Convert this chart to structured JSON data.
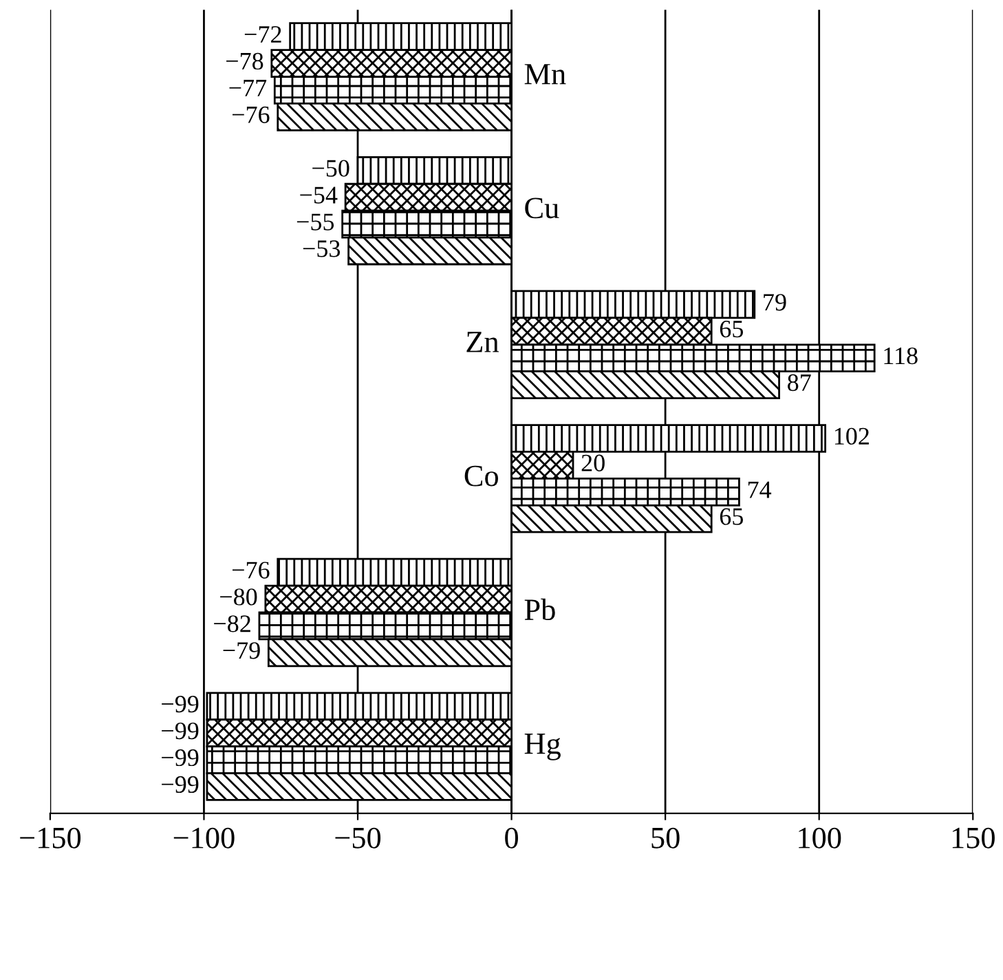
{
  "chart_data": {
    "type": "bar",
    "orientation": "horizontal",
    "categories": [
      "Mn",
      "Cu",
      "Zn",
      "Co",
      "Pb",
      "Hg"
    ],
    "series": [
      {
        "color": "#000000",
        "values": [
          -72,
          -50,
          79,
          102,
          -76,
          -99
        ]
      },
      {
        "color": "#000000",
        "values": [
          -78,
          -54,
          65,
          20,
          -80,
          -99
        ]
      },
      {
        "color": "#000000",
        "values": [
          -77,
          -55,
          118,
          74,
          -82,
          -99
        ]
      },
      {
        "color": "#000000",
        "values": [
          -76,
          -53,
          87,
          65,
          -79,
          -99
        ]
      }
    ],
    "xlim": [
      -150,
      150
    ],
    "xticks": [
      {
        "value": -150,
        "label": "−150"
      },
      {
        "value": -100,
        "label": "−100"
      },
      {
        "value": -50,
        "label": "−50"
      },
      0,
      50,
      100,
      150
    ],
    "grid": "x",
    "data_labels": true
  }
}
